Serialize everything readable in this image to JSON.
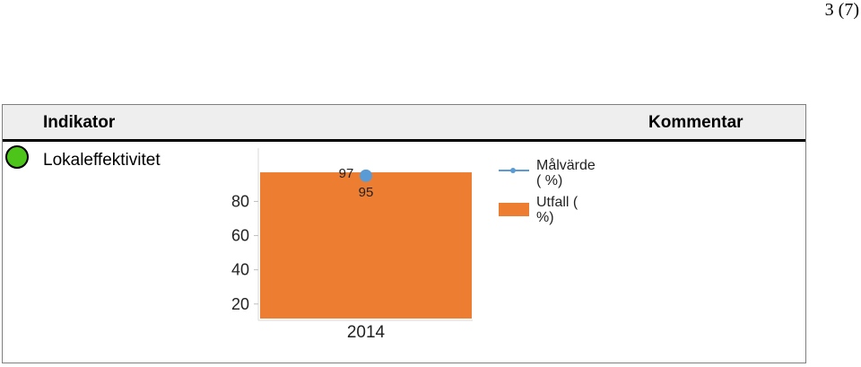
{
  "page_number": "3 (7)",
  "table": {
    "header": {
      "indikator": "Indikator",
      "kommentar": "Kommentar"
    },
    "rows": [
      {
        "status_color": "#4cc41a",
        "indikator": "Lokaleffektivitet",
        "kommentar": ""
      }
    ]
  },
  "chart_data": {
    "type": "bar",
    "categories": [
      "2014"
    ],
    "series": [
      {
        "name": "Utfall ( %)",
        "type": "bar",
        "values": [
          97
        ],
        "color": "#ed7d31"
      },
      {
        "name": "Målvärde ( %)",
        "type": "line",
        "values": [
          95
        ],
        "color": "#5b9bd5"
      }
    ],
    "data_labels": [
      "97",
      "95"
    ],
    "y_ticks": [
      "20",
      "40",
      "60",
      "80"
    ],
    "ylim": [
      0,
      100
    ],
    "legend": {
      "position": "right",
      "entries": [
        {
          "lines": [
            "Målvärde",
            "( %)"
          ],
          "marker": "line",
          "color": "#5b9bd5"
        },
        {
          "lines": [
            "Utfall (",
            "%)"
          ],
          "marker": "box",
          "color": "#ed7d31"
        }
      ]
    },
    "title": "",
    "xlabel": "",
    "ylabel": ""
  }
}
